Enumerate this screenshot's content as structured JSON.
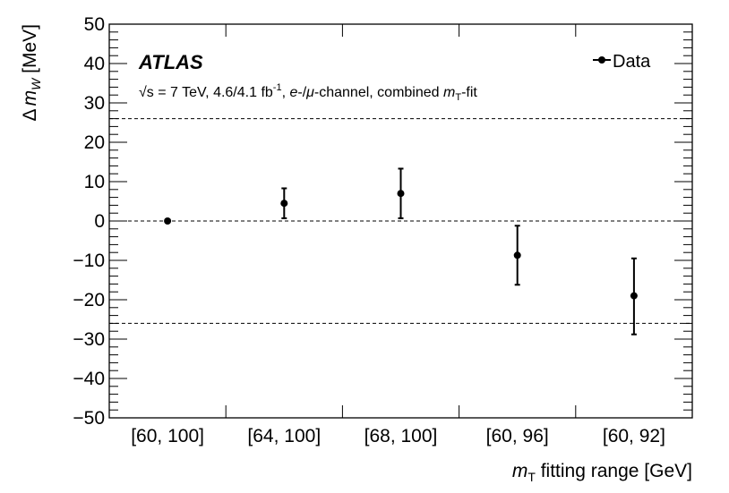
{
  "chart_data": {
    "type": "scatter",
    "experiment": "ATLAS",
    "subtitle": {
      "sqrt": "√s",
      "energy": " = 7 TeV, 4.6/4.1 fb",
      "lumi_exp": "-1",
      "sep": ", ",
      "e": "e",
      "dash": "-/",
      "mu": "μ",
      "channel": "-channel, combined ",
      "m": "m",
      "T": "T",
      "fit": "-fit"
    },
    "ylabel": {
      "delta": "Δ",
      "m": "m",
      "sub": "W",
      "unit": " [MeV]"
    },
    "xlabel": {
      "m": "m",
      "sub": "T",
      "rest": " fitting range [GeV]"
    },
    "ylim": [
      -50,
      50
    ],
    "yticks": [
      "−50",
      "−40",
      "−30",
      "−20",
      "−10",
      "0",
      "10",
      "20",
      "30",
      "40",
      "50"
    ],
    "categories": [
      "[60, 100]",
      "[64, 100]",
      "[68, 100]",
      "[60, 96]",
      "[60, 92]"
    ],
    "series": [
      {
        "name": "Data",
        "color": "#000000",
        "values": [
          0,
          4.5,
          7,
          -8.7,
          -19
        ],
        "err_low": [
          0,
          3.8,
          6.3,
          7.5,
          9.8
        ],
        "err_high": [
          0,
          3.8,
          6.3,
          7.5,
          9.5
        ],
        "x_offset": [
          0.5,
          0.5,
          0.5,
          0.5,
          0.5
        ]
      }
    ],
    "reference_lines": [
      26,
      0,
      -26
    ],
    "legend_position": "top-right",
    "grid": false
  }
}
